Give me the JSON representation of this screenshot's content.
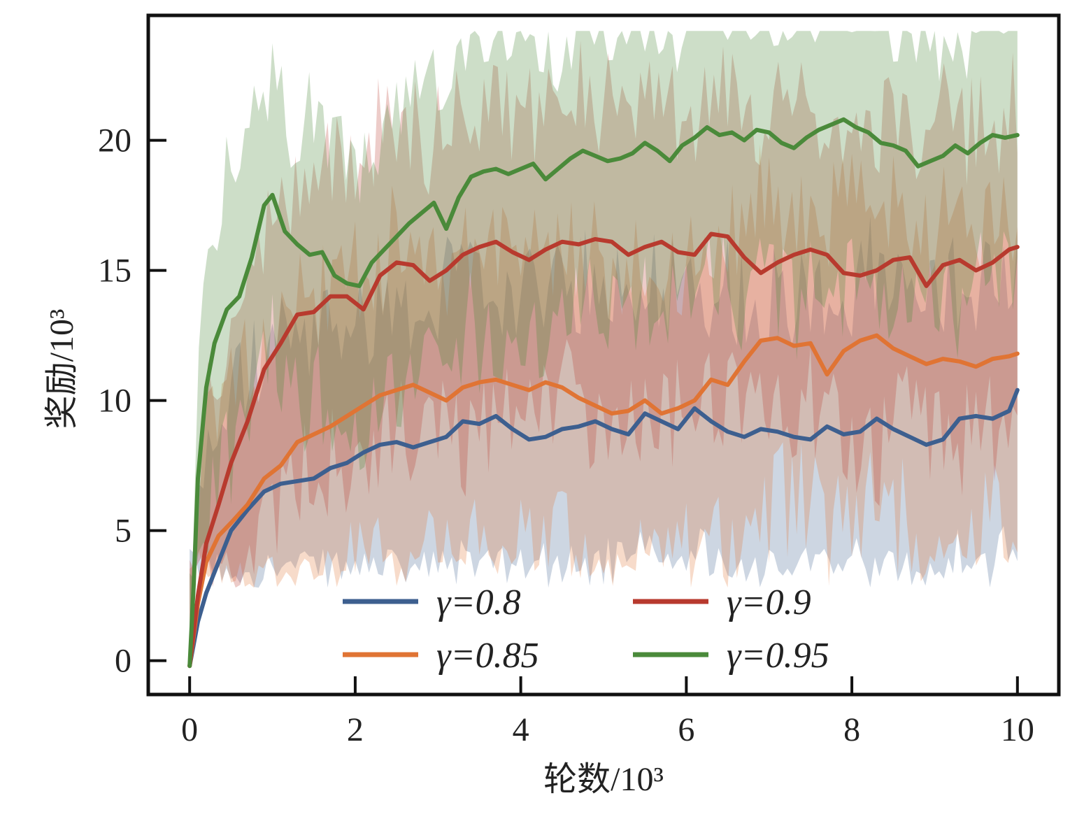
{
  "chart_data": {
    "type": "line",
    "xlabel": "轮数/10³",
    "ylabel": "奖励/10³",
    "xlim": [
      -0.5,
      10.5
    ],
    "ylim": [
      -1.3,
      24.8
    ],
    "xticks": [
      0,
      2,
      4,
      6,
      8,
      10
    ],
    "yticks": [
      0,
      5,
      10,
      15,
      20
    ],
    "grid": false,
    "legend_position": "bottom-center",
    "legend_columns": 2,
    "series": [
      {
        "name": "γ=0.8",
        "color": "#3d5f8f",
        "x": [
          0,
          0.1,
          0.2,
          0.35,
          0.5,
          0.7,
          0.9,
          1.1,
          1.3,
          1.5,
          1.7,
          1.9,
          2.1,
          2.3,
          2.5,
          2.7,
          2.9,
          3.1,
          3.3,
          3.5,
          3.7,
          3.9,
          4.1,
          4.3,
          4.5,
          4.7,
          4.9,
          5.1,
          5.3,
          5.5,
          5.7,
          5.9,
          6.1,
          6.3,
          6.5,
          6.7,
          6.9,
          7.1,
          7.3,
          7.5,
          7.7,
          7.9,
          8.1,
          8.3,
          8.5,
          8.7,
          8.9,
          9.1,
          9.3,
          9.5,
          9.7,
          9.9,
          10.0
        ],
        "y": [
          -0.2,
          1.5,
          2.6,
          3.8,
          5.0,
          5.8,
          6.5,
          6.8,
          6.9,
          7.0,
          7.4,
          7.6,
          8.0,
          8.3,
          8.4,
          8.2,
          8.4,
          8.6,
          9.2,
          9.1,
          9.4,
          8.9,
          8.5,
          8.6,
          8.9,
          9.0,
          9.2,
          8.9,
          8.7,
          9.5,
          9.2,
          8.9,
          9.7,
          9.2,
          8.8,
          8.6,
          8.9,
          8.8,
          8.6,
          8.5,
          9.0,
          8.7,
          8.8,
          9.3,
          8.9,
          8.6,
          8.3,
          8.5,
          9.3,
          9.4,
          9.3,
          9.6,
          10.4
        ]
      },
      {
        "name": "γ=0.85",
        "color": "#e07434",
        "x": [
          0,
          0.1,
          0.2,
          0.35,
          0.5,
          0.7,
          0.9,
          1.1,
          1.3,
          1.5,
          1.7,
          1.9,
          2.1,
          2.3,
          2.5,
          2.7,
          2.9,
          3.1,
          3.3,
          3.5,
          3.7,
          3.9,
          4.1,
          4.3,
          4.5,
          4.7,
          4.9,
          5.1,
          5.3,
          5.5,
          5.7,
          5.9,
          6.1,
          6.3,
          6.5,
          6.7,
          6.9,
          7.1,
          7.3,
          7.5,
          7.7,
          7.9,
          8.1,
          8.3,
          8.5,
          8.7,
          8.9,
          9.1,
          9.3,
          9.5,
          9.7,
          9.9,
          10.0
        ],
        "y": [
          -0.2,
          2.2,
          3.8,
          4.8,
          5.3,
          6.0,
          7.0,
          7.5,
          8.4,
          8.7,
          9.0,
          9.4,
          9.8,
          10.2,
          10.4,
          10.6,
          10.3,
          10.0,
          10.5,
          10.7,
          10.8,
          10.6,
          10.4,
          10.7,
          10.5,
          10.1,
          9.8,
          9.5,
          9.6,
          10.0,
          9.5,
          9.7,
          10.0,
          10.8,
          10.6,
          11.5,
          12.3,
          12.4,
          12.1,
          12.2,
          11.0,
          11.9,
          12.3,
          12.5,
          12.0,
          11.7,
          11.4,
          11.6,
          11.5,
          11.3,
          11.6,
          11.7,
          11.8
        ]
      },
      {
        "name": "γ=0.9",
        "color": "#b83a2e",
        "x": [
          0,
          0.1,
          0.2,
          0.35,
          0.5,
          0.7,
          0.9,
          1.1,
          1.3,
          1.5,
          1.7,
          1.9,
          2.1,
          2.3,
          2.5,
          2.7,
          2.9,
          3.1,
          3.3,
          3.5,
          3.7,
          3.9,
          4.1,
          4.3,
          4.5,
          4.7,
          4.9,
          5.1,
          5.3,
          5.5,
          5.7,
          5.9,
          6.1,
          6.3,
          6.5,
          6.7,
          6.9,
          7.1,
          7.3,
          7.5,
          7.7,
          7.9,
          8.1,
          8.3,
          8.5,
          8.7,
          8.9,
          9.1,
          9.3,
          9.5,
          9.7,
          9.9,
          10.0
        ],
        "y": [
          -0.2,
          2.5,
          4.5,
          6.0,
          7.6,
          9.2,
          11.2,
          12.2,
          13.3,
          13.4,
          14.0,
          14.0,
          13.5,
          14.8,
          15.3,
          15.2,
          14.6,
          15.0,
          15.6,
          15.9,
          16.1,
          15.7,
          15.4,
          15.8,
          16.1,
          16.0,
          16.2,
          16.1,
          15.6,
          15.9,
          16.1,
          15.7,
          15.6,
          16.4,
          16.3,
          15.5,
          14.9,
          15.3,
          15.6,
          15.8,
          15.6,
          14.9,
          14.8,
          15.0,
          15.4,
          15.5,
          14.4,
          15.2,
          15.4,
          15.0,
          15.3,
          15.8,
          15.9
        ]
      },
      {
        "name": "γ=0.95",
        "color": "#4a8a3a",
        "x": [
          0,
          0.05,
          0.1,
          0.2,
          0.3,
          0.45,
          0.6,
          0.75,
          0.9,
          1.0,
          1.15,
          1.3,
          1.45,
          1.6,
          1.75,
          1.9,
          2.05,
          2.2,
          2.35,
          2.5,
          2.65,
          2.8,
          2.95,
          3.1,
          3.25,
          3.4,
          3.55,
          3.7,
          3.85,
          4.0,
          4.15,
          4.3,
          4.45,
          4.6,
          4.75,
          4.9,
          5.05,
          5.2,
          5.35,
          5.5,
          5.65,
          5.8,
          5.95,
          6.1,
          6.25,
          6.4,
          6.55,
          6.7,
          6.85,
          7.0,
          7.15,
          7.3,
          7.45,
          7.6,
          7.75,
          7.9,
          8.05,
          8.2,
          8.35,
          8.5,
          8.65,
          8.8,
          8.95,
          9.1,
          9.25,
          9.4,
          9.55,
          9.7,
          9.85,
          10.0
        ],
        "y": [
          -0.2,
          3.0,
          7.0,
          10.5,
          12.2,
          13.5,
          14.0,
          15.5,
          17.5,
          17.9,
          16.5,
          16.0,
          15.6,
          15.7,
          14.8,
          14.5,
          14.4,
          15.3,
          15.8,
          16.3,
          16.8,
          17.2,
          17.6,
          16.6,
          17.8,
          18.6,
          18.8,
          18.9,
          18.7,
          18.9,
          19.1,
          18.5,
          18.9,
          19.3,
          19.6,
          19.4,
          19.2,
          19.3,
          19.5,
          19.9,
          19.6,
          19.2,
          19.8,
          20.1,
          20.5,
          20.2,
          20.3,
          20.0,
          20.4,
          20.3,
          19.9,
          19.7,
          20.1,
          20.4,
          20.6,
          20.8,
          20.5,
          20.3,
          19.9,
          19.8,
          19.6,
          19.0,
          19.2,
          19.4,
          19.8,
          19.5,
          19.9,
          20.2,
          20.1,
          20.2
        ]
      }
    ]
  }
}
